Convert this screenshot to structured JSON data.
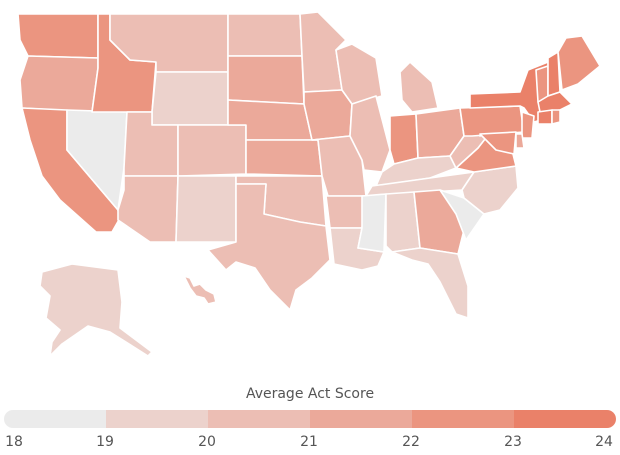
{
  "map": {
    "title": "",
    "scale_colors": [
      "#ebebeb",
      "#ecd2cc",
      "#ecbeb4",
      "#eba99a",
      "#eb9580",
      "#ea8169"
    ],
    "states": [
      {
        "name": "WA",
        "value": 22
      },
      {
        "name": "OR",
        "value": 21
      },
      {
        "name": "CA",
        "value": 22
      },
      {
        "name": "NV",
        "value": 18
      },
      {
        "name": "ID",
        "value": 22
      },
      {
        "name": "MT",
        "value": 20
      },
      {
        "name": "WY",
        "value": 19
      },
      {
        "name": "UT",
        "value": 20
      },
      {
        "name": "AZ",
        "value": 20
      },
      {
        "name": "CO",
        "value": 20
      },
      {
        "name": "NM",
        "value": 19
      },
      {
        "name": "ND",
        "value": 20
      },
      {
        "name": "SD",
        "value": 21
      },
      {
        "name": "NE",
        "value": 21
      },
      {
        "name": "KS",
        "value": 21
      },
      {
        "name": "OK",
        "value": 20
      },
      {
        "name": "TX",
        "value": 20
      },
      {
        "name": "MN",
        "value": 20
      },
      {
        "name": "IA",
        "value": 21
      },
      {
        "name": "MO",
        "value": 20
      },
      {
        "name": "AR",
        "value": 20
      },
      {
        "name": "LA",
        "value": 19
      },
      {
        "name": "WI",
        "value": 20
      },
      {
        "name": "IL",
        "value": 20
      },
      {
        "name": "MI",
        "value": 20
      },
      {
        "name": "IN",
        "value": 22
      },
      {
        "name": "OH",
        "value": 21
      },
      {
        "name": "KY",
        "value": 19
      },
      {
        "name": "TN",
        "value": 19
      },
      {
        "name": "MS",
        "value": 18
      },
      {
        "name": "AL",
        "value": 19
      },
      {
        "name": "GA",
        "value": 21
      },
      {
        "name": "FL",
        "value": 19
      },
      {
        "name": "SC",
        "value": 18
      },
      {
        "name": "NC",
        "value": 19
      },
      {
        "name": "VA",
        "value": 22
      },
      {
        "name": "WV",
        "value": 20
      },
      {
        "name": "PA",
        "value": 22
      },
      {
        "name": "NY",
        "value": 23
      },
      {
        "name": "VT",
        "value": 22
      },
      {
        "name": "NH",
        "value": 23
      },
      {
        "name": "ME",
        "value": 22
      },
      {
        "name": "MA",
        "value": 23
      },
      {
        "name": "CT",
        "value": 23
      },
      {
        "name": "RI",
        "value": 22
      },
      {
        "name": "NJ",
        "value": 22
      },
      {
        "name": "DE",
        "value": 21
      },
      {
        "name": "MD",
        "value": 22
      },
      {
        "name": "AK",
        "value": 19
      },
      {
        "name": "HI",
        "value": 20
      }
    ]
  },
  "legend": {
    "title": "Average Act Score",
    "ticks": [
      "18",
      "19",
      "20",
      "21",
      "22",
      "23",
      "24"
    ]
  }
}
